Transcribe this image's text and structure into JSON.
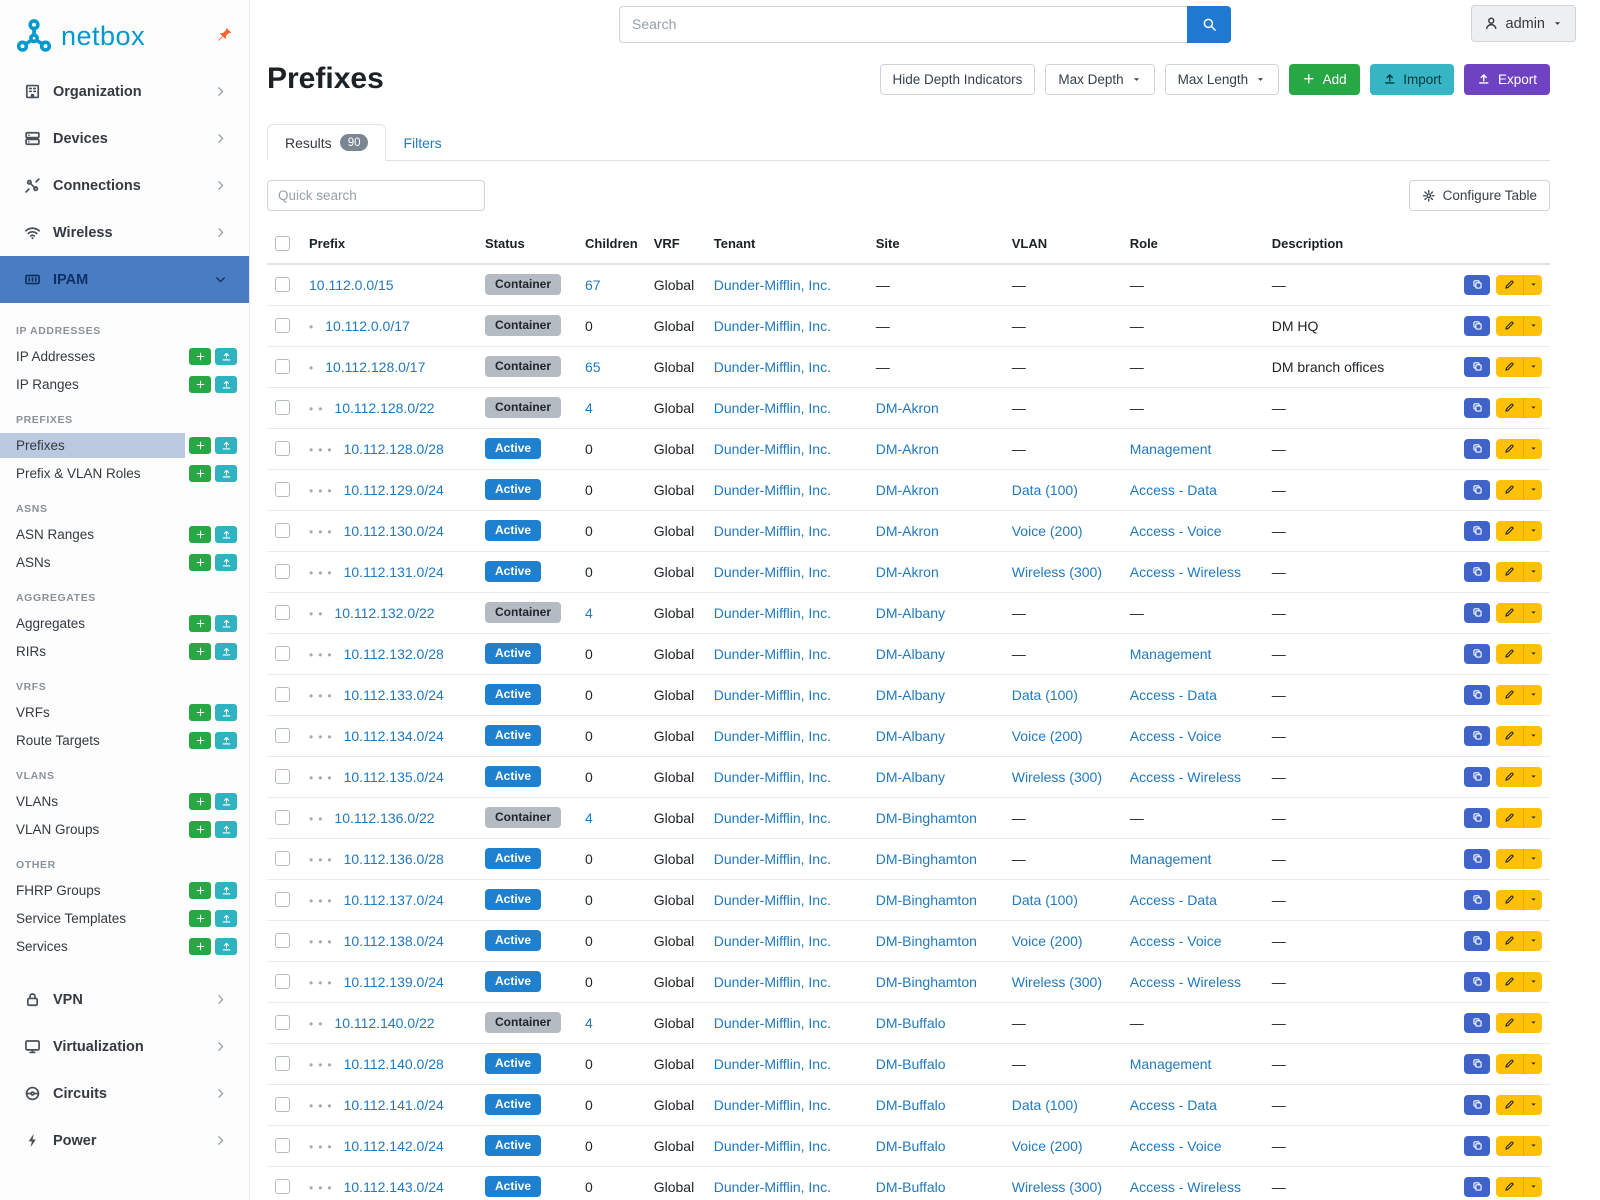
{
  "colors": {
    "brand_teal": "#0099cc",
    "nav_active_bg": "#4a7cc2",
    "subitem_active_bg": "#bac9e0",
    "link_blue": "#2179c1",
    "status_active_badge": "#2080d0",
    "status_container_badge": "#b4bbc2",
    "add_green": "#28a745",
    "import_teal": "#36b6c4",
    "export_purple": "#6f42c1",
    "edit_yellow": "#ffc107",
    "clone_blue": "#3f63c8",
    "pin_orange": "#f96332"
  },
  "topbar": {
    "search_placeholder": "Search",
    "user_label": "admin"
  },
  "sidebar": {
    "logo_text": "netbox",
    "groups": [
      {
        "label": "Organization",
        "icon": "building"
      },
      {
        "label": "Devices",
        "icon": "server"
      },
      {
        "label": "Connections",
        "icon": "plug"
      },
      {
        "label": "Wireless",
        "icon": "wifi"
      },
      {
        "label": "IPAM",
        "icon": "counter",
        "active": true
      },
      {
        "label": "VPN",
        "icon": "lock"
      },
      {
        "label": "Virtualization",
        "icon": "monitor"
      },
      {
        "label": "Circuits",
        "icon": "circuit"
      },
      {
        "label": "Power",
        "icon": "power"
      }
    ],
    "ipam_sections": [
      {
        "header": "IP ADDRESSES",
        "items": [
          {
            "label": "IP Addresses"
          },
          {
            "label": "IP Ranges"
          }
        ]
      },
      {
        "header": "PREFIXES",
        "items": [
          {
            "label": "Prefixes",
            "active": true
          },
          {
            "label": "Prefix & VLAN Roles"
          }
        ]
      },
      {
        "header": "ASNS",
        "items": [
          {
            "label": "ASN Ranges"
          },
          {
            "label": "ASNs"
          }
        ]
      },
      {
        "header": "AGGREGATES",
        "items": [
          {
            "label": "Aggregates"
          },
          {
            "label": "RIRs"
          }
        ]
      },
      {
        "header": "VRFS",
        "items": [
          {
            "label": "VRFs"
          },
          {
            "label": "Route Targets"
          }
        ]
      },
      {
        "header": "VLANS",
        "items": [
          {
            "label": "VLANs"
          },
          {
            "label": "VLAN Groups"
          }
        ]
      },
      {
        "header": "OTHER",
        "items": [
          {
            "label": "FHRP Groups"
          },
          {
            "label": "Service Templates"
          },
          {
            "label": "Services"
          }
        ]
      }
    ]
  },
  "page": {
    "title": "Prefixes",
    "toolbar": {
      "hide_depth_label": "Hide Depth Indicators",
      "max_depth_label": "Max Depth",
      "max_length_label": "Max Length",
      "add_label": "Add",
      "import_label": "Import",
      "export_label": "Export"
    },
    "tabs": {
      "results_label": "Results",
      "results_count": "90",
      "filters_label": "Filters"
    },
    "quick_search_placeholder": "Quick search",
    "configure_table_label": "Configure Table"
  },
  "table": {
    "columns": [
      "Prefix",
      "Status",
      "Children",
      "VRF",
      "Tenant",
      "Site",
      "VLAN",
      "Role",
      "Description"
    ],
    "rows": [
      {
        "depth": 0,
        "prefix": "10.112.0.0/15",
        "status": "Container",
        "children": "67",
        "vrf": "Global",
        "tenant": "Dunder-Mifflin, Inc.",
        "site": "—",
        "vlan": "—",
        "role": "—",
        "description": "—"
      },
      {
        "depth": 1,
        "prefix": "10.112.0.0/17",
        "status": "Container",
        "children": "0",
        "vrf": "Global",
        "tenant": "Dunder-Mifflin, Inc.",
        "site": "—",
        "vlan": "—",
        "role": "—",
        "description": "DM HQ"
      },
      {
        "depth": 1,
        "prefix": "10.112.128.0/17",
        "status": "Container",
        "children": "65",
        "vrf": "Global",
        "tenant": "Dunder-Mifflin, Inc.",
        "site": "—",
        "vlan": "—",
        "role": "—",
        "description": "DM branch offices"
      },
      {
        "depth": 2,
        "prefix": "10.112.128.0/22",
        "status": "Container",
        "children": "4",
        "vrf": "Global",
        "tenant": "Dunder-Mifflin, Inc.",
        "site": "DM-Akron",
        "vlan": "—",
        "role": "—",
        "description": "—"
      },
      {
        "depth": 3,
        "prefix": "10.112.128.0/28",
        "status": "Active",
        "children": "0",
        "vrf": "Global",
        "tenant": "Dunder-Mifflin, Inc.",
        "site": "DM-Akron",
        "vlan": "—",
        "role": "Management",
        "description": "—"
      },
      {
        "depth": 3,
        "prefix": "10.112.129.0/24",
        "status": "Active",
        "children": "0",
        "vrf": "Global",
        "tenant": "Dunder-Mifflin, Inc.",
        "site": "DM-Akron",
        "vlan": "Data (100)",
        "role": "Access - Data",
        "description": "—"
      },
      {
        "depth": 3,
        "prefix": "10.112.130.0/24",
        "status": "Active",
        "children": "0",
        "vrf": "Global",
        "tenant": "Dunder-Mifflin, Inc.",
        "site": "DM-Akron",
        "vlan": "Voice (200)",
        "role": "Access - Voice",
        "description": "—"
      },
      {
        "depth": 3,
        "prefix": "10.112.131.0/24",
        "status": "Active",
        "children": "0",
        "vrf": "Global",
        "tenant": "Dunder-Mifflin, Inc.",
        "site": "DM-Akron",
        "vlan": "Wireless (300)",
        "role": "Access - Wireless",
        "description": "—"
      },
      {
        "depth": 2,
        "prefix": "10.112.132.0/22",
        "status": "Container",
        "children": "4",
        "vrf": "Global",
        "tenant": "Dunder-Mifflin, Inc.",
        "site": "DM-Albany",
        "vlan": "—",
        "role": "—",
        "description": "—"
      },
      {
        "depth": 3,
        "prefix": "10.112.132.0/28",
        "status": "Active",
        "children": "0",
        "vrf": "Global",
        "tenant": "Dunder-Mifflin, Inc.",
        "site": "DM-Albany",
        "vlan": "—",
        "role": "Management",
        "description": "—"
      },
      {
        "depth": 3,
        "prefix": "10.112.133.0/24",
        "status": "Active",
        "children": "0",
        "vrf": "Global",
        "tenant": "Dunder-Mifflin, Inc.",
        "site": "DM-Albany",
        "vlan": "Data (100)",
        "role": "Access - Data",
        "description": "—"
      },
      {
        "depth": 3,
        "prefix": "10.112.134.0/24",
        "status": "Active",
        "children": "0",
        "vrf": "Global",
        "tenant": "Dunder-Mifflin, Inc.",
        "site": "DM-Albany",
        "vlan": "Voice (200)",
        "role": "Access - Voice",
        "description": "—"
      },
      {
        "depth": 3,
        "prefix": "10.112.135.0/24",
        "status": "Active",
        "children": "0",
        "vrf": "Global",
        "tenant": "Dunder-Mifflin, Inc.",
        "site": "DM-Albany",
        "vlan": "Wireless (300)",
        "role": "Access - Wireless",
        "description": "—"
      },
      {
        "depth": 2,
        "prefix": "10.112.136.0/22",
        "status": "Container",
        "children": "4",
        "vrf": "Global",
        "tenant": "Dunder-Mifflin, Inc.",
        "site": "DM-Binghamton",
        "vlan": "—",
        "role": "—",
        "description": "—"
      },
      {
        "depth": 3,
        "prefix": "10.112.136.0/28",
        "status": "Active",
        "children": "0",
        "vrf": "Global",
        "tenant": "Dunder-Mifflin, Inc.",
        "site": "DM-Binghamton",
        "vlan": "—",
        "role": "Management",
        "description": "—"
      },
      {
        "depth": 3,
        "prefix": "10.112.137.0/24",
        "status": "Active",
        "children": "0",
        "vrf": "Global",
        "tenant": "Dunder-Mifflin, Inc.",
        "site": "DM-Binghamton",
        "vlan": "Data (100)",
        "role": "Access - Data",
        "description": "—"
      },
      {
        "depth": 3,
        "prefix": "10.112.138.0/24",
        "status": "Active",
        "children": "0",
        "vrf": "Global",
        "tenant": "Dunder-Mifflin, Inc.",
        "site": "DM-Binghamton",
        "vlan": "Voice (200)",
        "role": "Access - Voice",
        "description": "—"
      },
      {
        "depth": 3,
        "prefix": "10.112.139.0/24",
        "status": "Active",
        "children": "0",
        "vrf": "Global",
        "tenant": "Dunder-Mifflin, Inc.",
        "site": "DM-Binghamton",
        "vlan": "Wireless (300)",
        "role": "Access - Wireless",
        "description": "—"
      },
      {
        "depth": 2,
        "prefix": "10.112.140.0/22",
        "status": "Container",
        "children": "4",
        "vrf": "Global",
        "tenant": "Dunder-Mifflin, Inc.",
        "site": "DM-Buffalo",
        "vlan": "—",
        "role": "—",
        "description": "—"
      },
      {
        "depth": 3,
        "prefix": "10.112.140.0/28",
        "status": "Active",
        "children": "0",
        "vrf": "Global",
        "tenant": "Dunder-Mifflin, Inc.",
        "site": "DM-Buffalo",
        "vlan": "—",
        "role": "Management",
        "description": "—"
      },
      {
        "depth": 3,
        "prefix": "10.112.141.0/24",
        "status": "Active",
        "children": "0",
        "vrf": "Global",
        "tenant": "Dunder-Mifflin, Inc.",
        "site": "DM-Buffalo",
        "vlan": "Data (100)",
        "role": "Access - Data",
        "description": "—"
      },
      {
        "depth": 3,
        "prefix": "10.112.142.0/24",
        "status": "Active",
        "children": "0",
        "vrf": "Global",
        "tenant": "Dunder-Mifflin, Inc.",
        "site": "DM-Buffalo",
        "vlan": "Voice (200)",
        "role": "Access - Voice",
        "description": "—"
      },
      {
        "depth": 3,
        "prefix": "10.112.143.0/24",
        "status": "Active",
        "children": "0",
        "vrf": "Global",
        "tenant": "Dunder-Mifflin, Inc.",
        "site": "DM-Buffalo",
        "vlan": "Wireless (300)",
        "role": "Access - Wireless",
        "description": "—"
      }
    ]
  }
}
